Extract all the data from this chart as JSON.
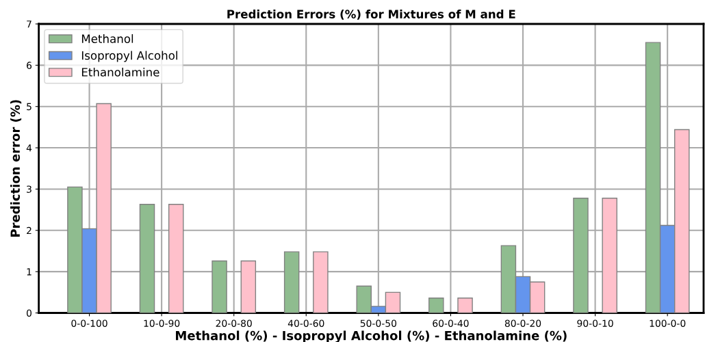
{
  "chart_data": {
    "type": "bar",
    "title": "Prediction Errors (%) for Mixtures of M and E",
    "xlabel": "Methanol (%) - Isopropyl Alcohol (%) - Ethanolamine (%)",
    "ylabel": "Prediction error (%)",
    "categories": [
      "0-0-100",
      "10-0-90",
      "20-0-80",
      "40-0-60",
      "50-0-50",
      "60-0-40",
      "80-0-20",
      "90-0-10",
      "100-0-0"
    ],
    "series": [
      {
        "name": "Methanol",
        "color": "#8fbc8f",
        "values": [
          3.05,
          2.63,
          1.26,
          1.48,
          0.65,
          0.36,
          1.63,
          2.78,
          6.55
        ]
      },
      {
        "name": "Isopropyl Alcohol",
        "color": "#6495ed",
        "values": [
          2.04,
          null,
          null,
          null,
          0.16,
          null,
          0.88,
          null,
          2.12
        ]
      },
      {
        "name": "Ethanolamine",
        "color": "#ffc0cb",
        "values": [
          5.07,
          2.63,
          1.26,
          1.48,
          0.5,
          0.36,
          0.75,
          2.78,
          4.44
        ]
      }
    ],
    "ylim": [
      0,
      7
    ],
    "yticks": [
      0,
      1,
      2,
      3,
      4,
      5,
      6,
      7
    ],
    "grid": true,
    "legend": "top left"
  }
}
